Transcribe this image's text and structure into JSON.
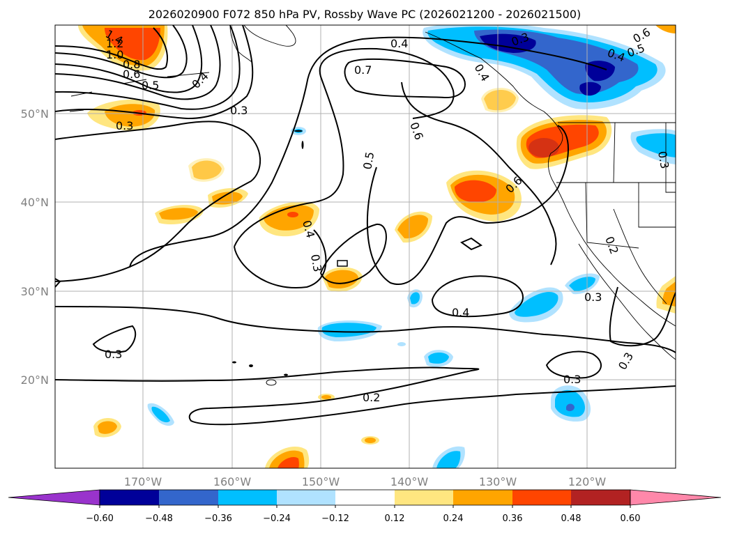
{
  "title": "2026020900 F072 850 hPa PV, Rossby Wave PC (2026021200 - 2026021500)",
  "colors": {
    "neg_extreme": "#9933cc",
    "c_-0.60_-0.48": "#000099",
    "c_-0.48_-0.36": "#3366cc",
    "c_-0.36_-0.24": "#00bfff",
    "c_-0.24_-0.12": "#b0e2ff",
    "c_-0.12_0.12": "#ffffff",
    "c_0.12_0.24": "#ffe680",
    "c_0.24_0.36": "#ffa500",
    "c_0.36_0.48": "#ff4500",
    "c_0.48_0.60": "#b22222",
    "pos_extreme": "#ff88aa",
    "contour": "#000000",
    "grid": "#b0b0b0",
    "tick_label": "#808080"
  },
  "lat_labels": [
    "50°N",
    "40°N",
    "30°N",
    "20°N"
  ],
  "lon_labels": [
    "170°W",
    "160°W",
    "150°W",
    "140°W",
    "130°W",
    "120°W"
  ],
  "colorbar": {
    "tick_labels": [
      "−0.60",
      "−0.48",
      "−0.36",
      "−0.24",
      "−0.12",
      "0.12",
      "0.24",
      "0.36",
      "0.48",
      "0.60"
    ]
  },
  "contour_labels": [
    "1.4",
    "1.2",
    "1.0",
    "0.8",
    "0.6",
    "0.5",
    "0.4",
    "0.3",
    "0.4",
    "0.7",
    "0.6",
    "0.5",
    "0.3",
    "0.4",
    "0.5",
    "0.6",
    "0.4",
    "0.3",
    "0.4",
    "0.3",
    "0.2",
    "0.3",
    "0.3",
    "0.3",
    "0.3",
    "0.2",
    "0.6",
    "0.3",
    "0.4"
  ],
  "chart_data": {
    "type": "map",
    "title": "2026020900 F072 850 hPa PV, Rossby Wave PC (2026021200 - 2026021500)",
    "lat_range": [
      "10°N",
      "60°N"
    ],
    "lon_range": [
      "180°W",
      "110°W"
    ],
    "filled_variable": "Rossby Wave PC",
    "contour_variable": "850 hPa PV",
    "colorbar_levels": [
      -0.6,
      -0.48,
      -0.36,
      -0.24,
      -0.12,
      0.12,
      0.24,
      0.36,
      0.48,
      0.6
    ],
    "colorbar_extend": "both"
  }
}
